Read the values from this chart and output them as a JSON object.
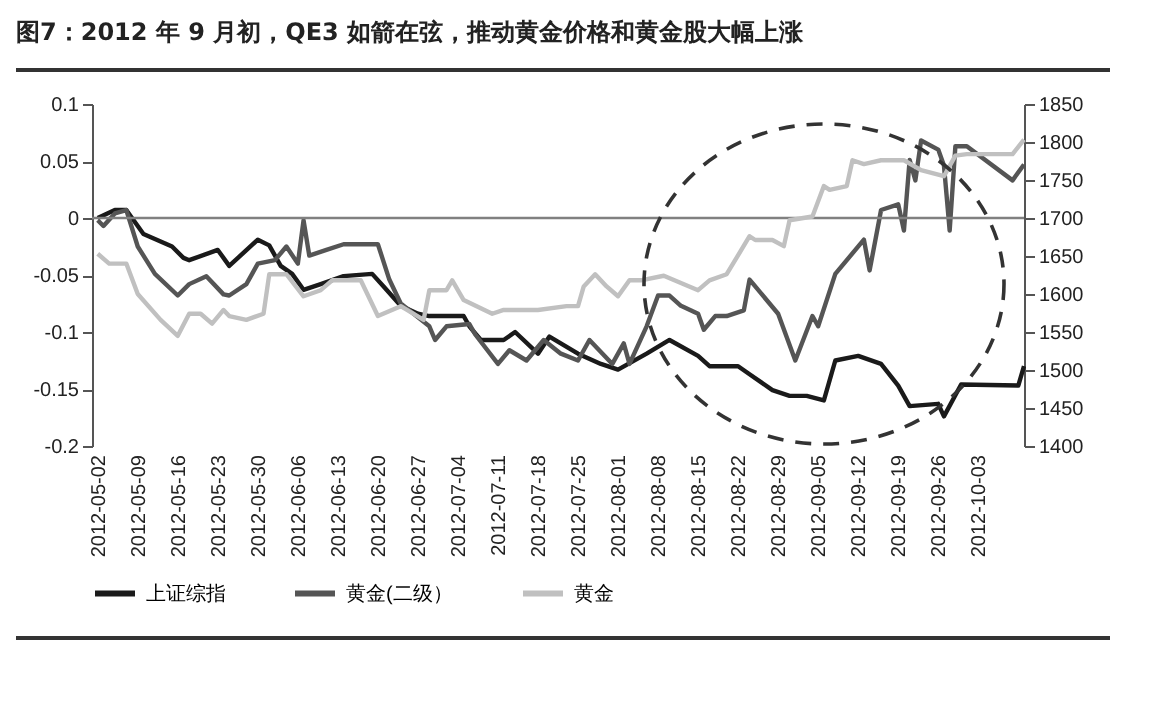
{
  "chart_data": {
    "type": "line",
    "title": "图7：2012 年 9 月初，QE3 如箭在弦，推动黄金价格和黄金股大幅上涨",
    "xlim": [
      "2012-05-01",
      "2012-10-11"
    ],
    "xticks": [
      "2012-05-02",
      "2012-05-09",
      "2012-05-16",
      "2012-05-23",
      "2012-05-30",
      "2012-06-06",
      "2012-06-13",
      "2012-06-20",
      "2012-06-27",
      "2012-07-04",
      "2012-07-11",
      "2012-07-18",
      "2012-07-25",
      "2012-08-01",
      "2012-08-08",
      "2012-08-15",
      "2012-08-22",
      "2012-08-29",
      "2012-09-05",
      "2012-09-12",
      "2012-09-19",
      "2012-09-26",
      "2012-10-03"
    ],
    "ylim": [
      -0.2,
      0.1
    ],
    "yticks": [
      -0.2,
      -0.15,
      -0.1,
      -0.05,
      0,
      0.05,
      0.1
    ],
    "y2lim": [
      1400,
      1850
    ],
    "y2ticks": [
      1400,
      1450,
      1500,
      1550,
      1600,
      1650,
      1700,
      1750,
      1800,
      1850
    ],
    "legend": "bottom",
    "grid": false,
    "ref_lines": [
      {
        "axis": "y",
        "value": 0,
        "color": "#808080"
      }
    ],
    "series": [
      {
        "name": "上证综指",
        "color": "#1a1a1a",
        "axis": "y",
        "x": [
          "2012-05-02",
          "2012-05-05",
          "2012-05-07",
          "2012-05-10",
          "2012-05-15",
          "2012-05-17",
          "2012-05-18",
          "2012-05-23",
          "2012-05-25",
          "2012-05-30",
          "2012-06-01",
          "2012-06-03",
          "2012-06-05",
          "2012-06-07",
          "2012-06-10",
          "2012-06-14",
          "2012-06-19",
          "2012-06-21",
          "2012-06-24",
          "2012-06-27",
          "2012-06-29",
          "2012-07-05",
          "2012-07-06",
          "2012-07-08",
          "2012-07-12",
          "2012-07-14",
          "2012-07-18",
          "2012-07-20",
          "2012-07-25",
          "2012-07-29",
          "2012-08-01",
          "2012-08-06",
          "2012-08-10",
          "2012-08-15",
          "2012-08-17",
          "2012-08-22",
          "2012-08-24",
          "2012-08-28",
          "2012-08-31",
          "2012-09-03",
          "2012-09-06",
          "2012-09-08",
          "2012-09-12",
          "2012-09-16",
          "2012-09-19",
          "2012-09-21",
          "2012-09-26",
          "2012-09-27",
          "2012-09-30",
          "2012-10-10",
          "2012-10-11"
        ],
        "values": [
          0.0,
          0.007,
          0.007,
          -0.014,
          -0.025,
          -0.035,
          -0.037,
          -0.028,
          -0.042,
          -0.019,
          -0.024,
          -0.042,
          -0.049,
          -0.063,
          -0.058,
          -0.051,
          -0.049,
          -0.06,
          -0.077,
          -0.084,
          -0.086,
          -0.086,
          -0.095,
          -0.107,
          -0.107,
          -0.1,
          -0.119,
          -0.104,
          -0.119,
          -0.128,
          -0.133,
          -0.119,
          -0.107,
          -0.121,
          -0.13,
          -0.13,
          -0.137,
          -0.151,
          -0.156,
          -0.156,
          -0.16,
          -0.125,
          -0.121,
          -0.128,
          -0.147,
          -0.165,
          -0.163,
          -0.174,
          -0.146,
          -0.147,
          -0.13
        ]
      },
      {
        "name": "黄金(二级）",
        "color": "#555555",
        "axis": "y",
        "x": [
          "2012-05-02",
          "2012-05-03",
          "2012-05-05",
          "2012-05-07",
          "2012-05-09",
          "2012-05-12",
          "2012-05-16",
          "2012-05-18",
          "2012-05-21",
          "2012-05-24",
          "2012-05-25",
          "2012-05-28",
          "2012-05-30",
          "2012-06-02",
          "2012-06-04",
          "2012-06-06",
          "2012-06-07",
          "2012-06-08",
          "2012-06-11",
          "2012-06-14",
          "2012-06-20",
          "2012-06-22",
          "2012-06-24",
          "2012-06-29",
          "2012-06-30",
          "2012-07-02",
          "2012-07-06",
          "2012-07-07",
          "2012-07-11",
          "2012-07-13",
          "2012-07-16",
          "2012-07-19",
          "2012-07-22",
          "2012-07-25",
          "2012-07-27",
          "2012-07-31",
          "2012-08-02",
          "2012-08-03",
          "2012-08-06",
          "2012-08-08",
          "2012-08-10",
          "2012-08-12",
          "2012-08-15",
          "2012-08-16",
          "2012-08-18",
          "2012-08-20",
          "2012-08-23",
          "2012-08-24",
          "2012-08-25",
          "2012-08-29",
          "2012-09-01",
          "2012-09-04",
          "2012-09-05",
          "2012-09-08",
          "2012-09-13",
          "2012-09-14",
          "2012-09-16",
          "2012-09-19",
          "2012-09-20",
          "2012-09-21",
          "2012-09-22",
          "2012-09-23",
          "2012-09-26",
          "2012-09-27",
          "2012-09-28",
          "2012-09-29",
          "2012-10-01",
          "2012-10-09",
          "2012-10-11"
        ],
        "values": [
          -0.002,
          -0.007,
          0.004,
          0.007,
          -0.025,
          -0.049,
          -0.068,
          -0.058,
          -0.051,
          -0.067,
          -0.068,
          -0.058,
          -0.04,
          -0.037,
          -0.025,
          -0.04,
          -0.002,
          -0.033,
          -0.028,
          -0.023,
          -0.023,
          -0.054,
          -0.075,
          -0.095,
          -0.107,
          -0.095,
          -0.093,
          -0.102,
          -0.128,
          -0.116,
          -0.125,
          -0.107,
          -0.119,
          -0.125,
          -0.107,
          -0.128,
          -0.11,
          -0.128,
          -0.095,
          -0.068,
          -0.068,
          -0.077,
          -0.084,
          -0.098,
          -0.086,
          -0.086,
          -0.081,
          -0.054,
          -0.06,
          -0.084,
          -0.125,
          -0.086,
          -0.095,
          -0.049,
          -0.019,
          -0.046,
          0.007,
          0.012,
          -0.011,
          0.051,
          0.033,
          0.068,
          0.06,
          0.046,
          -0.011,
          0.063,
          0.063,
          0.033,
          0.047
        ]
      },
      {
        "name": "黄金",
        "color": "#c0c0c0",
        "axis": "y2",
        "x": [
          "2012-05-02",
          "2012-05-04",
          "2012-05-07",
          "2012-05-09",
          "2012-05-13",
          "2012-05-16",
          "2012-05-18",
          "2012-05-20",
          "2012-05-22",
          "2012-05-24",
          "2012-05-25",
          "2012-05-28",
          "2012-05-31",
          "2012-06-01",
          "2012-06-04",
          "2012-06-07",
          "2012-06-10",
          "2012-06-12",
          "2012-06-17",
          "2012-06-20",
          "2012-06-24",
          "2012-06-28",
          "2012-06-29",
          "2012-07-02",
          "2012-07-03",
          "2012-07-05",
          "2012-07-10",
          "2012-07-12",
          "2012-07-18",
          "2012-07-23",
          "2012-07-25",
          "2012-07-26",
          "2012-07-28",
          "2012-07-30",
          "2012-08-01",
          "2012-08-03",
          "2012-08-05",
          "2012-08-09",
          "2012-08-15",
          "2012-08-17",
          "2012-08-20",
          "2012-08-24",
          "2012-08-25",
          "2012-08-28",
          "2012-08-30",
          "2012-08-31",
          "2012-09-04",
          "2012-09-06",
          "2012-09-07",
          "2012-09-10",
          "2012-09-11",
          "2012-09-13",
          "2012-09-16",
          "2012-09-20",
          "2012-09-23",
          "2012-09-27",
          "2012-09-29",
          "2012-10-01",
          "2012-10-04",
          "2012-10-09",
          "2012-10-11"
        ],
        "values": [
          1653,
          1640,
          1640,
          1600,
          1566,
          1545,
          1574,
          1574,
          1561,
          1579,
          1571,
          1566,
          1574,
          1626,
          1626,
          1597,
          1605,
          1618,
          1618,
          1571,
          1584,
          1566,
          1605,
          1605,
          1618,
          1592,
          1574,
          1579,
          1579,
          1584,
          1584,
          1610,
          1626,
          1610,
          1597,
          1618,
          1618,
          1624,
          1605,
          1618,
          1626,
          1676,
          1671,
          1671,
          1663,
          1697,
          1702,
          1742,
          1737,
          1742,
          1776,
          1771,
          1776,
          1776,
          1763,
          1755,
          1782,
          1784,
          1784,
          1784,
          1803
        ]
      }
    ]
  }
}
